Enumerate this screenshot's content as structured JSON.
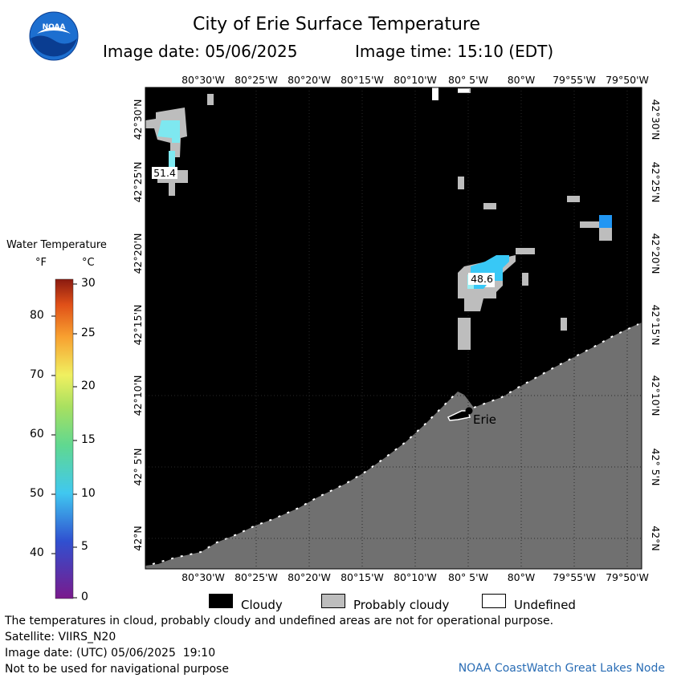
{
  "header": {
    "title": "City of Erie Surface Temperature",
    "image_date": "Image date: 05/06/2025",
    "image_time": "Image time: 15:10 (EDT)"
  },
  "logo": {
    "text": "NOAA",
    "colors": {
      "top": "#1d6fd0",
      "bottom": "#0a3d91"
    }
  },
  "map": {
    "lon_labels": [
      "80°30'W",
      "80°25'W",
      "80°20'W",
      "80°15'W",
      "80°10'W",
      "80° 5'W",
      "80°W",
      "79°55'W",
      "79°50'W"
    ],
    "lat_labels": [
      "42°30'N",
      "42°25'N",
      "42°20'N",
      "42°15'N",
      "42°10'N",
      "42° 5'N",
      "42°N"
    ],
    "temp_labels": [
      {
        "value": "51.4",
        "lon": -80.535,
        "lat": 42.43
      },
      {
        "value": "48.6",
        "lon": -80.075,
        "lat": 42.31
      }
    ],
    "city": {
      "name": "Erie",
      "lon": -80.085,
      "lat": 42.13
    },
    "colors": {
      "cloudy": "#000000",
      "probably_cloudy": "#bdbdbd",
      "land": "#707070",
      "undefined": "#ffffff"
    }
  },
  "colorbar": {
    "title": "Water Temperature",
    "unit_f": "°F",
    "unit_c": "°C",
    "f_ticks": [
      "80",
      "70",
      "60",
      "50",
      "40"
    ],
    "c_ticks": [
      "30",
      "25",
      "20",
      "15",
      "10",
      "5",
      "0"
    ]
  },
  "legend": {
    "cloudy": "Cloudy",
    "probably_cloudy": "Probably cloudy",
    "undefined": "Undefined"
  },
  "footer": {
    "disclaimer": "The temperatures in cloud, probably cloudy and undefined areas are not for operational purpose.",
    "satellite": "Satellite: VIIRS_N20",
    "utc_date": "Image date: (UTC) 05/06/2025  19:10",
    "nav_warning": "Not to be used for navigational purpose",
    "credit": "NOAA CoastWatch Great Lakes Node"
  }
}
